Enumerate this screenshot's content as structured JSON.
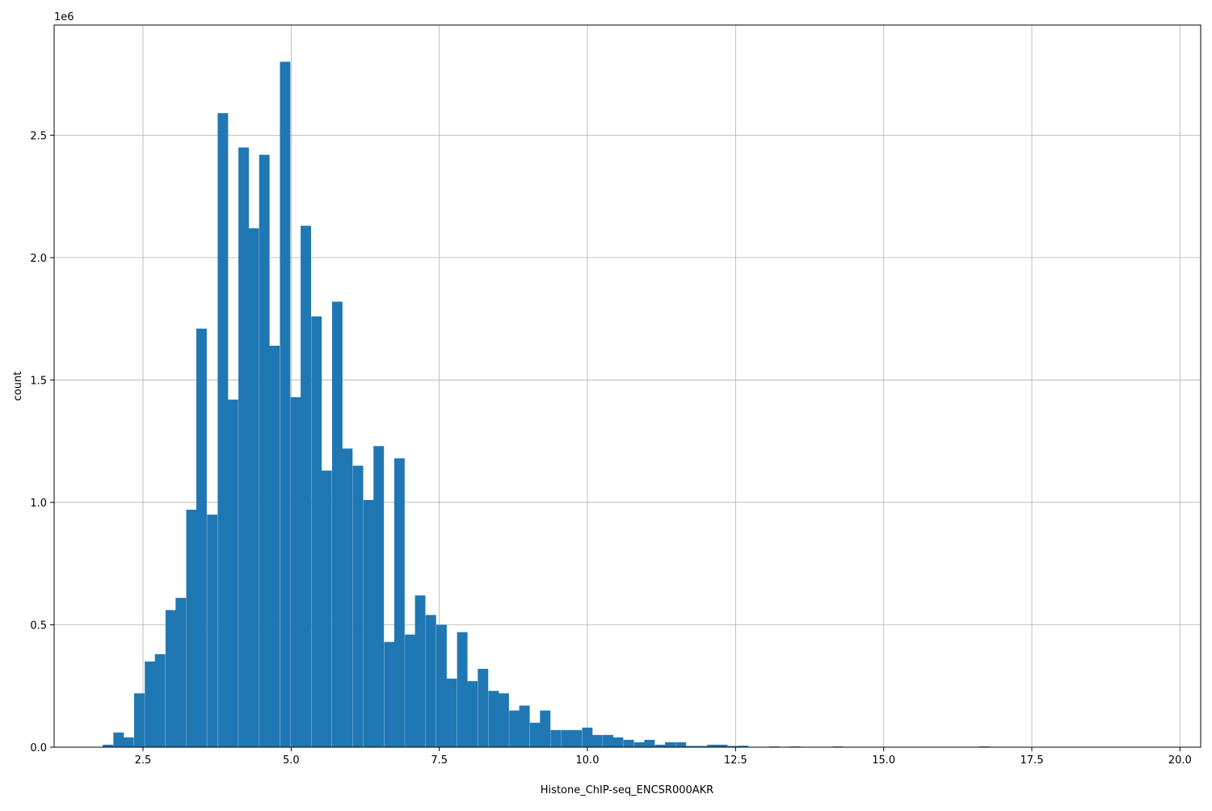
{
  "chart_data": {
    "type": "bar",
    "subtype": "histogram",
    "xlabel": "Histone_ChIP-seq_ENCSR000AKR",
    "ylabel": "count",
    "y_scale_label": "1e6",
    "xlim": [
      1.0,
      20.35
    ],
    "ylim": [
      0,
      2.95
    ],
    "x_ticks": [
      2.5,
      5.0,
      7.5,
      10.0,
      12.5,
      15.0,
      17.5,
      20.0
    ],
    "x_tick_labels": [
      "2.5",
      "5.0",
      "7.5",
      "10.0",
      "12.5",
      "15.0",
      "17.5",
      "20.0"
    ],
    "y_ticks": [
      0.0,
      0.5,
      1.0,
      1.5,
      2.0,
      2.5
    ],
    "y_tick_labels": [
      "0.0",
      "0.5",
      "1.0",
      "1.5",
      "2.0",
      "2.5"
    ],
    "grid": true,
    "bar_color": "#1f77b4",
    "bin_width": 0.176,
    "bins": [
      [
        1.82,
        0.01
      ],
      [
        2.0,
        0.06
      ],
      [
        2.17,
        0.04
      ],
      [
        2.35,
        0.22
      ],
      [
        2.53,
        0.35
      ],
      [
        2.7,
        0.38
      ],
      [
        2.88,
        0.56
      ],
      [
        3.05,
        0.61
      ],
      [
        3.23,
        0.97
      ],
      [
        3.4,
        1.71
      ],
      [
        3.58,
        0.95
      ],
      [
        3.76,
        2.59
      ],
      [
        3.93,
        1.42
      ],
      [
        4.11,
        2.45
      ],
      [
        4.28,
        2.12
      ],
      [
        4.46,
        2.42
      ],
      [
        4.63,
        1.64
      ],
      [
        4.81,
        2.8
      ],
      [
        4.99,
        1.43
      ],
      [
        5.16,
        2.13
      ],
      [
        5.34,
        1.76
      ],
      [
        5.51,
        1.13
      ],
      [
        5.69,
        1.82
      ],
      [
        5.86,
        1.22
      ],
      [
        6.04,
        1.15
      ],
      [
        6.22,
        1.01
      ],
      [
        6.39,
        1.23
      ],
      [
        6.57,
        0.43
      ],
      [
        6.74,
        1.18
      ],
      [
        6.92,
        0.46
      ],
      [
        7.09,
        0.62
      ],
      [
        7.27,
        0.54
      ],
      [
        7.45,
        0.5
      ],
      [
        7.62,
        0.28
      ],
      [
        7.8,
        0.47
      ],
      [
        7.97,
        0.27
      ],
      [
        8.15,
        0.32
      ],
      [
        8.33,
        0.23
      ],
      [
        8.5,
        0.22
      ],
      [
        8.68,
        0.15
      ],
      [
        8.85,
        0.17
      ],
      [
        9.03,
        0.1
      ],
      [
        9.2,
        0.15
      ],
      [
        9.38,
        0.07
      ],
      [
        9.56,
        0.07
      ],
      [
        9.73,
        0.07
      ],
      [
        9.91,
        0.08
      ],
      [
        10.08,
        0.05
      ],
      [
        10.26,
        0.05
      ],
      [
        10.43,
        0.04
      ],
      [
        10.61,
        0.03
      ],
      [
        10.79,
        0.02
      ],
      [
        10.96,
        0.03
      ],
      [
        11.14,
        0.01
      ],
      [
        11.31,
        0.02
      ],
      [
        11.49,
        0.02
      ],
      [
        11.66,
        0.005
      ],
      [
        11.84,
        0.005
      ],
      [
        12.02,
        0.01
      ],
      [
        12.19,
        0.01
      ],
      [
        12.37,
        0.005
      ],
      [
        12.54,
        0.006
      ],
      [
        13.07,
        0.003
      ],
      [
        13.42,
        0.003
      ],
      [
        14.14,
        0.003
      ],
      [
        16.61,
        0.003
      ]
    ]
  }
}
